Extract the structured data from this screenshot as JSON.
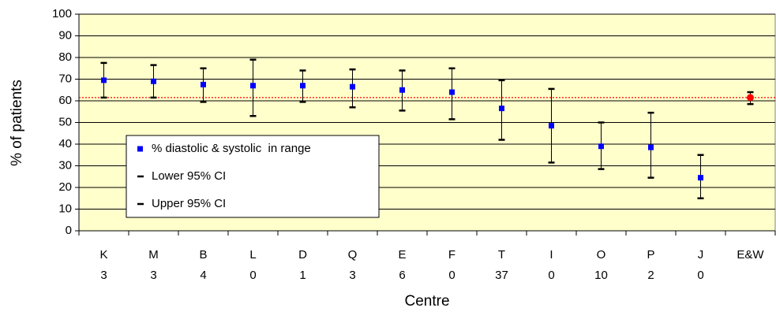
{
  "chart_data": {
    "type": "errorbar",
    "x_label": "Centre",
    "y_label": "% of patients",
    "categories": [
      "K",
      "M",
      "B",
      "L",
      "D",
      "Q",
      "E",
      "F",
      "T",
      "I",
      "O",
      "P",
      "J",
      "E&W"
    ],
    "category_counts": [
      "3",
      "3",
      "4",
      "0",
      "1",
      "3",
      "6",
      "0",
      "37",
      "0",
      "10",
      "2",
      "0",
      null
    ],
    "series": [
      {
        "name": "% diastolic & systolic  in range",
        "color": "#0000ff",
        "values": [
          69.5,
          69,
          67.5,
          67,
          67,
          66.5,
          65,
          64,
          56.5,
          48.5,
          39,
          38.5,
          24.5,
          61.5
        ],
        "point_colors": [
          "#0000ff",
          "#0000ff",
          "#0000ff",
          "#0000ff",
          "#0000ff",
          "#0000ff",
          "#0000ff",
          "#0000ff",
          "#0000ff",
          "#0000ff",
          "#0000ff",
          "#0000ff",
          "#0000ff",
          "#ff0000"
        ]
      },
      {
        "name": "Lower 95% CI",
        "color": "#000000",
        "values": [
          61.5,
          61.5,
          59.5,
          53,
          59.5,
          57,
          55.5,
          51.5,
          42,
          31.5,
          28.5,
          24.5,
          15,
          58.5
        ]
      },
      {
        "name": "Upper 95% CI",
        "color": "#000000",
        "values": [
          77.5,
          76.5,
          75,
          79,
          74,
          74.5,
          74,
          75,
          69.5,
          65.5,
          50,
          54.5,
          35,
          64
        ]
      }
    ],
    "reference_line": {
      "value": 61.5,
      "color": "#ff0000"
    },
    "ylim": [
      0,
      100
    ],
    "yticks": [
      0,
      10,
      20,
      30,
      40,
      50,
      60,
      70,
      80,
      90,
      100
    ],
    "grid": true,
    "plot_background": "#ffffcc"
  }
}
